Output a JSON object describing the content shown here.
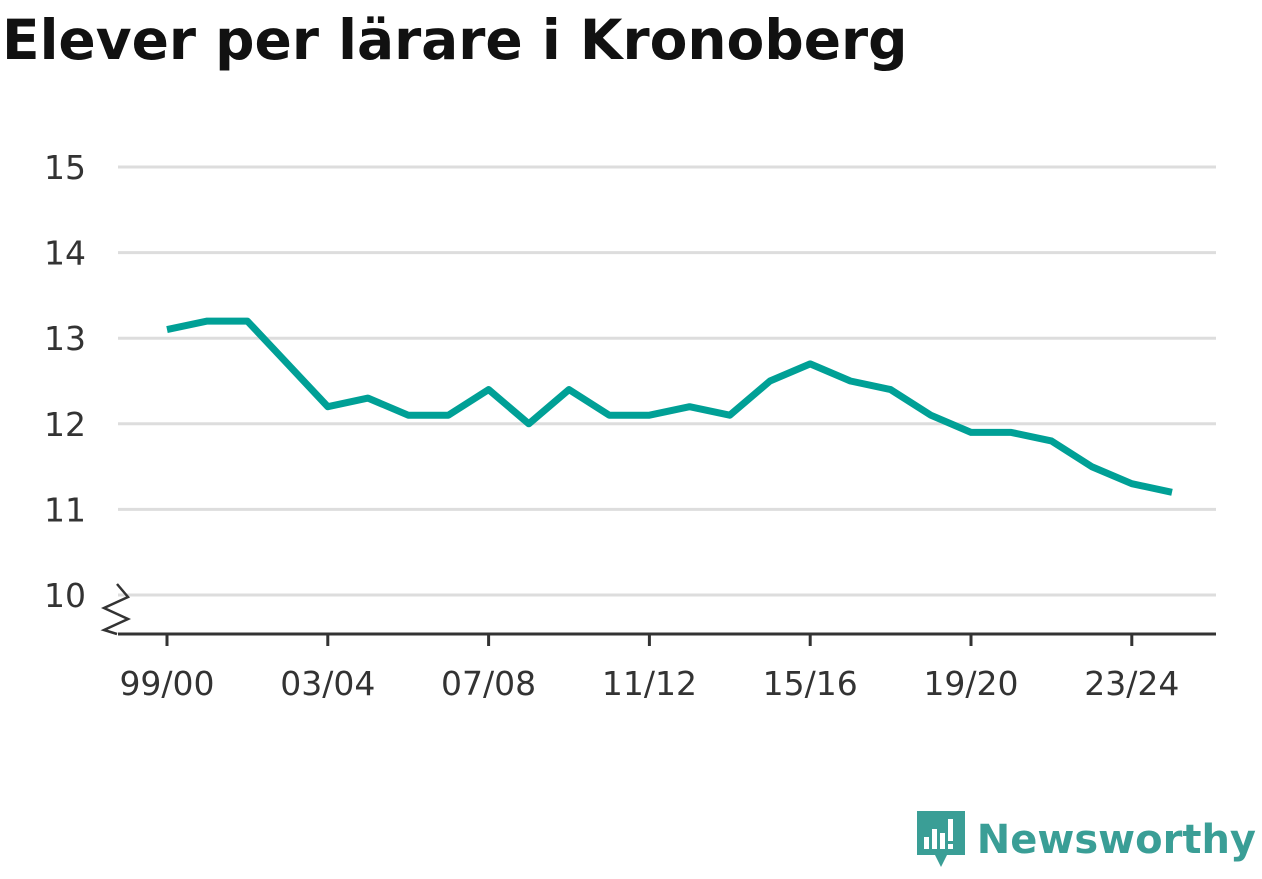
{
  "title": "Elever per lärare i Kronoberg",
  "brand": {
    "name": "Newsworthy",
    "icon": "newsworthy-logo-icon",
    "color": "#3a9e96"
  },
  "colors": {
    "line": "#00a096",
    "grid": "#dddddd",
    "axis": "#333333"
  },
  "chart_data": {
    "type": "line",
    "title": "Elever per lärare i Kronoberg",
    "xlabel": "",
    "ylabel": "",
    "x": [
      "99/00",
      "00/01",
      "01/02",
      "02/03",
      "03/04",
      "04/05",
      "05/06",
      "06/07",
      "07/08",
      "08/09",
      "09/10",
      "10/11",
      "11/12",
      "12/13",
      "13/14",
      "14/15",
      "15/16",
      "16/17",
      "17/18",
      "18/19",
      "19/20",
      "20/21",
      "21/22",
      "22/23",
      "23/24",
      "24/25"
    ],
    "x_tick_labels": [
      "99/00",
      "03/04",
      "07/08",
      "11/12",
      "15/16",
      "19/20",
      "23/24"
    ],
    "series": [
      {
        "values": [
          13.1,
          13.2,
          13.2,
          12.7,
          12.2,
          12.3,
          12.1,
          12.1,
          12.4,
          12.0,
          12.4,
          12.1,
          12.1,
          12.2,
          12.1,
          12.5,
          12.7,
          12.5,
          12.4,
          12.1,
          11.9,
          11.9,
          11.8,
          11.5,
          11.3,
          11.2
        ]
      }
    ],
    "y_ticks": [
      10,
      11,
      12,
      13,
      14,
      15
    ],
    "ylim": [
      10,
      15
    ],
    "y_axis_break": true,
    "grid": true,
    "legend": "none"
  }
}
